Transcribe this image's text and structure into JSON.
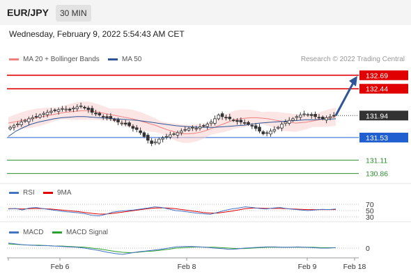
{
  "header": {
    "symbol": "EUR/JPY",
    "timeframe": "30 MIN"
  },
  "date_text": "Wednesday, February 9, 2022 5:54:43 AM CET",
  "legend": {
    "ma20": {
      "label": "MA 20 + Bollinger Bands",
      "color": "#f08080"
    },
    "ma50": {
      "label": "MA 50",
      "color": "#2f5597"
    },
    "credit": "Research © 2022 Trading Central"
  },
  "rsi_legend": {
    "rsi": "RSI",
    "ma9": "9MA",
    "rsi_color": "#4472c4",
    "ma9_color": "#e00000"
  },
  "macd_legend": {
    "macd": "MACD",
    "signal": "MACD Signal",
    "macd_color": "#4472c4",
    "signal_color": "#2ca02c"
  },
  "chart_data": {
    "type": "line",
    "series_type": "candlestick",
    "price_range": [
      130.7,
      132.85
    ],
    "levels": [
      {
        "value": 132.69,
        "label": "132.69",
        "color": "#e00000",
        "style": "badge"
      },
      {
        "value": 132.44,
        "label": "132.44",
        "color": "#e00000",
        "style": "badge"
      },
      {
        "value": 131.94,
        "label": "131.94",
        "color": "#333333",
        "style": "badge"
      },
      {
        "value": 131.53,
        "label": "131.53",
        "color": "#1f5fcf",
        "style": "badge"
      },
      {
        "value": 131.11,
        "label": "131.11",
        "color": "#2e8b2e",
        "style": "text"
      },
      {
        "value": 130.86,
        "label": "130.86",
        "color": "#2e8b2e",
        "style": "text"
      }
    ],
    "close_series": [
      131.72,
      131.75,
      131.78,
      131.82,
      131.85,
      131.88,
      131.9,
      131.92,
      131.95,
      131.98,
      132.0,
      132.02,
      132.03,
      132.05,
      132.07,
      132.06,
      132.04,
      132.08,
      132.1,
      132.12,
      132.08,
      132.05,
      132.0,
      131.97,
      131.95,
      131.92,
      131.9,
      131.88,
      131.85,
      131.82,
      131.8,
      131.78,
      131.75,
      131.7,
      131.68,
      131.62,
      131.55,
      131.48,
      131.42,
      131.45,
      131.5,
      131.52,
      131.55,
      131.58,
      131.6,
      131.62,
      131.65,
      131.68,
      131.7,
      131.72,
      131.7,
      131.73,
      131.75,
      131.78,
      131.82,
      131.88,
      131.95,
      131.92,
      131.9,
      131.88,
      131.85,
      131.83,
      131.82,
      131.8,
      131.78,
      131.75,
      131.7,
      131.65,
      131.6,
      131.62,
      131.65,
      131.68,
      131.72,
      131.78,
      131.82,
      131.85,
      131.88,
      131.92,
      131.95,
      131.97,
      131.96,
      131.94,
      131.92,
      131.9,
      131.88,
      131.9,
      131.92,
      131.94
    ],
    "ma20_series": [
      131.8,
      131.82,
      131.84,
      131.86,
      131.88,
      131.9,
      131.92,
      131.94,
      131.96,
      131.98,
      132.0,
      132.01,
      132.02,
      132.03,
      132.03,
      132.02,
      132.0,
      131.98,
      131.96,
      131.94,
      131.92,
      131.9,
      131.88,
      131.85,
      131.82,
      131.79,
      131.76,
      131.72,
      131.68,
      131.65,
      131.62,
      131.6,
      131.6,
      131.61,
      131.63,
      131.66,
      131.7,
      131.74,
      131.78,
      131.82,
      131.86,
      131.88,
      131.89,
      131.9,
      131.9,
      131.89,
      131.88,
      131.86,
      131.84,
      131.82,
      131.81,
      131.8,
      131.81,
      131.82,
      131.84,
      131.86,
      131.88,
      131.9,
      131.92
    ],
    "ma50_series": [
      131.55,
      131.65,
      131.72,
      131.78,
      131.82,
      131.85,
      131.88,
      131.9,
      131.91,
      131.92,
      131.92,
      131.91,
      131.9,
      131.89,
      131.88,
      131.87,
      131.86,
      131.85,
      131.83,
      131.81,
      131.79,
      131.77,
      131.75,
      131.74,
      131.73,
      131.72,
      131.72,
      131.72,
      131.73,
      131.74,
      131.75,
      131.76,
      131.78,
      131.8,
      131.81,
      131.82,
      131.83,
      131.84,
      131.85,
      131.86,
      131.86,
      131.87,
      131.87,
      131.88
    ],
    "rsi_levels": [
      70,
      50,
      30
    ],
    "rsi_series": [
      55,
      57,
      52,
      58,
      60,
      56,
      53,
      50,
      47,
      45,
      43,
      40,
      35,
      33,
      38,
      45,
      48,
      50,
      52,
      55,
      58,
      62,
      60,
      55,
      50,
      48,
      45,
      42,
      40,
      38,
      44,
      50,
      55,
      58,
      62,
      60,
      57,
      55,
      58,
      60,
      56,
      54,
      52,
      50,
      52,
      54,
      53,
      55
    ],
    "rsi_ma9_series": [
      56,
      56,
      55,
      56,
      57,
      56,
      55,
      53,
      51,
      49,
      47,
      44,
      41,
      39,
      39,
      41,
      44,
      47,
      50,
      53,
      56,
      58,
      59,
      58,
      56,
      53,
      50,
      47,
      44,
      42,
      42,
      45,
      48,
      52,
      56,
      58,
      58,
      57,
      57,
      57,
      56,
      55,
      54,
      53,
      53,
      53,
      53,
      53
    ],
    "macd_zero_label": "0",
    "macd_series": [
      0.12,
      0.1,
      0.08,
      0.07,
      0.06,
      0.06,
      0.05,
      0.04,
      0.03,
      0.02,
      0.0,
      -0.03,
      -0.06,
      -0.1,
      -0.13,
      -0.15,
      -0.12,
      -0.09,
      -0.07,
      -0.05,
      -0.03,
      0.0,
      0.03,
      0.04,
      0.04,
      0.03,
      0.02,
      0.0,
      -0.01,
      -0.03,
      -0.02,
      0.0,
      0.01,
      0.02,
      0.03,
      0.03,
      0.02,
      0.02,
      0.03,
      0.02,
      0.01,
      0.0,
      0.0,
      0.01
    ],
    "signal_series": [
      0.1,
      0.09,
      0.08,
      0.07,
      0.07,
      0.06,
      0.05,
      0.05,
      0.04,
      0.03,
      0.02,
      0.0,
      -0.02,
      -0.05,
      -0.08,
      -0.1,
      -0.11,
      -0.1,
      -0.08,
      -0.07,
      -0.05,
      -0.03,
      0.0,
      0.01,
      0.02,
      0.03,
      0.02,
      0.02,
      0.01,
      0.0,
      -0.01,
      -0.01,
      0.0,
      0.01,
      0.02,
      0.02,
      0.02,
      0.02,
      0.02,
      0.02,
      0.02,
      0.01,
      0.01,
      0.01
    ],
    "x_tick_labels": [
      "Feb 6",
      "Feb 8",
      "Feb 9",
      "Feb 18"
    ],
    "forecast_arrow": {
      "from": 131.94,
      "to": 132.69,
      "color": "#2f5597"
    }
  }
}
